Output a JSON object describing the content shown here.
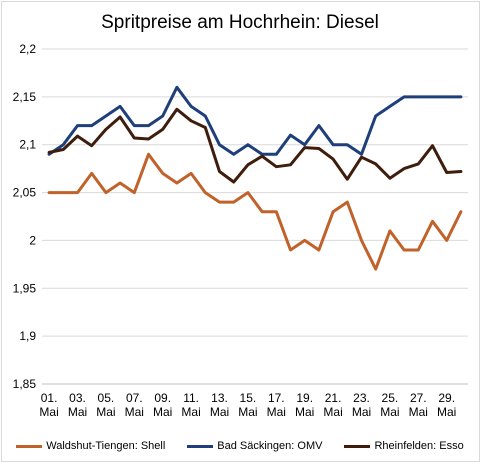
{
  "chart_data": {
    "type": "line",
    "title": "Spritpreise am Hochrhein: Diesel",
    "xlabel": "",
    "ylabel": "",
    "ylim": [
      1.85,
      2.2
    ],
    "yticks": [
      1.85,
      1.9,
      1.95,
      2,
      2.05,
      2.1,
      2.15,
      2.2
    ],
    "ytick_labels": [
      "1,85",
      "1,9",
      "1,95",
      "2",
      "2,05",
      "2,1",
      "2,15",
      "2,2"
    ],
    "x": [
      1,
      2,
      3,
      4,
      5,
      6,
      7,
      8,
      9,
      10,
      11,
      12,
      13,
      14,
      15,
      16,
      17,
      18,
      19,
      20,
      21,
      22,
      23,
      24,
      25,
      26,
      27,
      28,
      29,
      30
    ],
    "xtick_labels": [
      [
        "01.",
        "Mai"
      ],
      [
        "03.",
        "Mai"
      ],
      [
        "05.",
        "Mai"
      ],
      [
        "07.",
        "Mai"
      ],
      [
        "09.",
        "Mai"
      ],
      [
        "11.",
        "Mai"
      ],
      [
        "13.",
        "Mai"
      ],
      [
        "15.",
        "Mai"
      ],
      [
        "17.",
        "Mai"
      ],
      [
        "19.",
        "Mai"
      ],
      [
        "21.",
        "Mai"
      ],
      [
        "23.",
        "Mai"
      ],
      [
        "25.",
        "Mai"
      ],
      [
        "27.",
        "Mai"
      ],
      [
        "29.",
        "Mai"
      ]
    ],
    "grid": true,
    "legend_position": "bottom",
    "series": [
      {
        "name": "Waldshut-Tiengen: Shell",
        "color": "#c0622a",
        "values": [
          2.05,
          2.05,
          2.05,
          2.07,
          2.05,
          2.06,
          2.05,
          2.09,
          2.07,
          2.06,
          2.07,
          2.05,
          2.04,
          2.04,
          2.05,
          2.03,
          2.03,
          1.99,
          2.0,
          1.99,
          2.03,
          2.04,
          2.0,
          1.97,
          2.01,
          1.99,
          1.99,
          2.02,
          2.0,
          2.03
        ]
      },
      {
        "name": "Bad Säckingen: OMV",
        "color": "#1f3f7a",
        "values": [
          2.09,
          2.1,
          2.12,
          2.12,
          2.13,
          2.14,
          2.12,
          2.12,
          2.13,
          2.16,
          2.14,
          2.13,
          2.1,
          2.09,
          2.1,
          2.09,
          2.09,
          2.11,
          2.1,
          2.12,
          2.1,
          2.1,
          2.09,
          2.13,
          2.14,
          2.15,
          2.15,
          2.15,
          2.15,
          2.15
        ]
      },
      {
        "name": "Rheinfelden: Esso",
        "color": "#3f1d0c",
        "values": [
          2.092,
          2.095,
          2.109,
          2.099,
          2.116,
          2.129,
          2.107,
          2.106,
          2.116,
          2.137,
          2.125,
          2.118,
          2.072,
          2.061,
          2.079,
          2.088,
          2.077,
          2.079,
          2.097,
          2.096,
          2.085,
          2.064,
          2.087,
          2.08,
          2.065,
          2.075,
          2.08,
          2.099,
          2.071,
          2.072
        ]
      }
    ]
  }
}
